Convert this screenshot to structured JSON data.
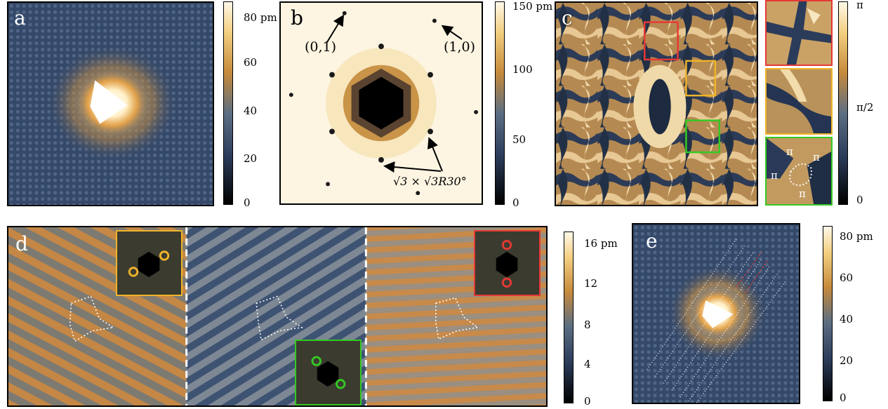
{
  "panels": {
    "a": {
      "label": "a"
    },
    "b": {
      "label": "b",
      "spot_labels": [
        "(0,1)",
        "(1,0)"
      ],
      "superstructure_label": "√3 × √3R30°"
    },
    "c": {
      "label": "c",
      "phase_labels": [
        "π",
        "π",
        "π",
        "π"
      ]
    },
    "d": {
      "label": "d"
    },
    "e": {
      "label": "e"
    }
  },
  "colorbars": {
    "a": {
      "ticks": [
        "80 pm",
        "60",
        "40",
        "20",
        "0"
      ]
    },
    "b": {
      "ticks": [
        "150 pm",
        "100",
        "50",
        "0"
      ]
    },
    "c": {
      "ticks": [
        "π",
        "π/2",
        "0"
      ]
    },
    "d": {
      "ticks": [
        "16 pm",
        "12",
        "8",
        "4",
        "0"
      ]
    },
    "e": {
      "ticks": [
        "80 pm",
        "60",
        "40",
        "20",
        "0"
      ]
    }
  },
  "colors": {
    "inset_red": "#e53935",
    "inset_yellow": "#f0b429",
    "inset_green": "#34c924",
    "cmap_low": "#000000",
    "cmap_mid_dark": "#3a4d6e",
    "cmap_mid": "#c98a3a",
    "cmap_high": "#fff8e6"
  }
}
